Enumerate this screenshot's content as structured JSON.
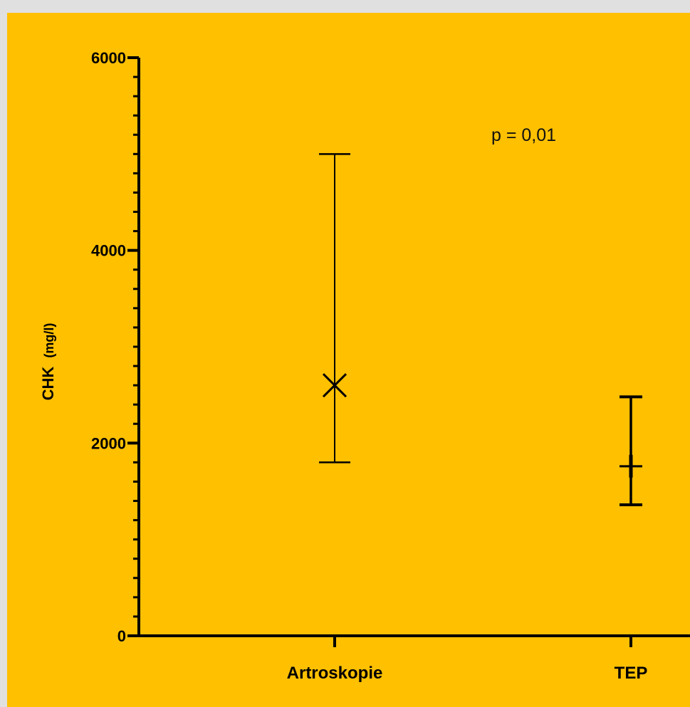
{
  "chart_data": {
    "type": "scatter",
    "ylabel": "CHK",
    "ylabel_unit": "(mg/l)",
    "ylim": [
      0,
      6000
    ],
    "yticks": [
      {
        "value": 0,
        "label": "0"
      },
      {
        "value": 2000,
        "label": "2000"
      },
      {
        "value": 4000,
        "label": "4000"
      },
      {
        "value": 6000,
        "label": "6000"
      }
    ],
    "y_minor_step": 200,
    "categories": [
      "Artroskopie",
      "TEP"
    ],
    "points": [
      {
        "category": "Artroskopie",
        "center": 2600,
        "lower": 1800,
        "upper": 5000,
        "marker": "x"
      },
      {
        "category": "TEP",
        "center": 1760,
        "lower": 1360,
        "upper": 2480,
        "marker": "plus"
      }
    ],
    "annotation": "p = 0,01",
    "grid": false,
    "legend": "none",
    "colors": {
      "background": "#ffc000",
      "frame": "#e0e0e0",
      "ink": "#000000"
    }
  }
}
